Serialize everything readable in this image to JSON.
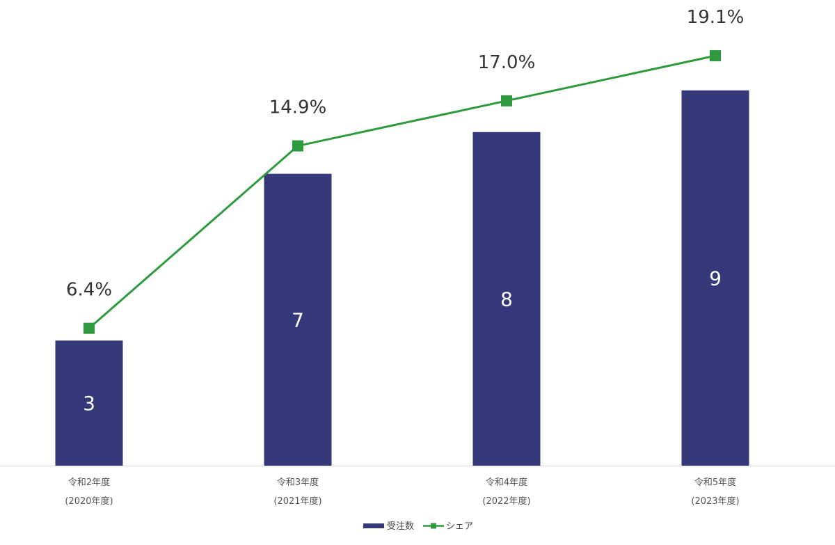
{
  "chart_data": {
    "type": "bar",
    "categories": [
      [
        "令和2年度",
        "(2020年度)"
      ],
      [
        "令和3年度",
        "(2021年度)"
      ],
      [
        "令和4年度",
        "(2022年度)"
      ],
      [
        "令和5年度",
        "(2023年度)"
      ]
    ],
    "series": [
      {
        "name": "受注数",
        "type": "bar",
        "axis": "left",
        "color": "#35397a",
        "values": [
          3,
          7,
          8,
          9
        ],
        "data_labels": [
          "3",
          "7",
          "8",
          "9"
        ]
      },
      {
        "name": "シェア",
        "type": "line",
        "axis": "right",
        "marker": "square",
        "color": "#2f9a3d",
        "values": [
          6.4,
          14.9,
          17.0,
          19.1
        ],
        "data_labels": [
          "6.4%",
          "14.9%",
          "17.0%",
          "19.1%"
        ]
      }
    ],
    "y_left_range": [
      0,
      10.5
    ],
    "y_right_range": [
      0,
      20.4
    ],
    "grid": false,
    "legend_position": "bottom"
  }
}
